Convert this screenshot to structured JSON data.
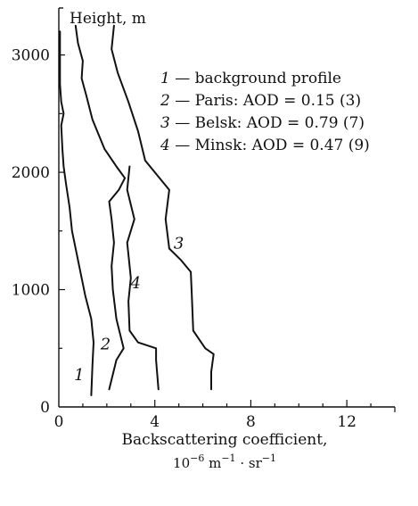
{
  "chart_data": {
    "type": "line",
    "xlabel": "Backscattering coefficient,",
    "xunit": {
      "base": "10",
      "base_exp": "−6",
      "m": " m",
      "m_exp": "−1",
      "sep": " · sr",
      "sr_exp": "−1"
    },
    "ylabel": "Height, m",
    "xlim": [
      0,
      14
    ],
    "ylim": [
      0,
      3400
    ],
    "xticks": [
      0,
      4,
      8,
      12
    ],
    "xtick_labels": [
      "0",
      "4",
      "8",
      "12"
    ],
    "yticks": [
      0,
      1000,
      2000,
      3000
    ],
    "ytick_labels": [
      "0",
      "1000",
      "2000",
      "3000"
    ],
    "grid": false,
    "legend_position": "top-right",
    "legend": [
      {
        "num": "1",
        "text": " — background profile"
      },
      {
        "num": "2",
        "text": " — Paris: AOD = 0.15 (3)"
      },
      {
        "num": "3",
        "text": " — Belsk: AOD = 0.79 (7)"
      },
      {
        "num": "4",
        "text": " — Minsk: AOD = 0.47 (9)"
      }
    ],
    "series": [
      {
        "label": "1",
        "label_at": [
          0.85,
          230
        ],
        "points": [
          [
            0.05,
            3200
          ],
          [
            0.05,
            2750
          ],
          [
            0.1,
            2600
          ],
          [
            0.2,
            2500
          ],
          [
            0.1,
            2400
          ],
          [
            0.15,
            2200
          ],
          [
            0.2,
            2050
          ],
          [
            0.3,
            1900
          ],
          [
            0.45,
            1700
          ],
          [
            0.55,
            1500
          ],
          [
            0.75,
            1300
          ],
          [
            0.95,
            1100
          ],
          [
            1.1,
            950
          ],
          [
            1.35,
            750
          ],
          [
            1.45,
            550
          ],
          [
            1.4,
            350
          ],
          [
            1.35,
            100
          ]
        ]
      },
      {
        "label": "2",
        "label_at": [
          1.95,
          490
        ],
        "points": [
          [
            0.7,
            3250
          ],
          [
            0.8,
            3100
          ],
          [
            1.0,
            2950
          ],
          [
            0.95,
            2800
          ],
          [
            1.15,
            2650
          ],
          [
            1.4,
            2450
          ],
          [
            1.9,
            2200
          ],
          [
            2.4,
            2050
          ],
          [
            2.75,
            1950
          ],
          [
            2.5,
            1850
          ],
          [
            2.1,
            1750
          ],
          [
            2.2,
            1600
          ],
          [
            2.3,
            1400
          ],
          [
            2.2,
            1200
          ],
          [
            2.25,
            1000
          ],
          [
            2.4,
            750
          ],
          [
            2.7,
            500
          ],
          [
            2.4,
            400
          ],
          [
            2.1,
            150
          ]
        ]
      },
      {
        "label": "3",
        "label_at": [
          5.0,
          1350
        ],
        "points": [
          [
            2.3,
            3250
          ],
          [
            2.2,
            3050
          ],
          [
            2.45,
            2850
          ],
          [
            2.9,
            2600
          ],
          [
            3.3,
            2350
          ],
          [
            3.6,
            2100
          ],
          [
            4.2,
            1950
          ],
          [
            4.6,
            1850
          ],
          [
            4.45,
            1600
          ],
          [
            4.6,
            1350
          ],
          [
            5.1,
            1250
          ],
          [
            5.5,
            1150
          ],
          [
            5.55,
            900
          ],
          [
            5.6,
            650
          ],
          [
            6.1,
            500
          ],
          [
            6.45,
            450
          ],
          [
            6.35,
            300
          ],
          [
            6.35,
            150
          ]
        ]
      },
      {
        "label": "4",
        "label_at": [
          3.2,
          1010
        ],
        "points": [
          [
            2.95,
            2050
          ],
          [
            2.85,
            1850
          ],
          [
            3.15,
            1600
          ],
          [
            2.85,
            1400
          ],
          [
            3.0,
            1100
          ],
          [
            2.9,
            900
          ],
          [
            2.95,
            650
          ],
          [
            3.3,
            550
          ],
          [
            4.05,
            500
          ],
          [
            4.05,
            400
          ],
          [
            4.15,
            150
          ]
        ]
      }
    ]
  }
}
